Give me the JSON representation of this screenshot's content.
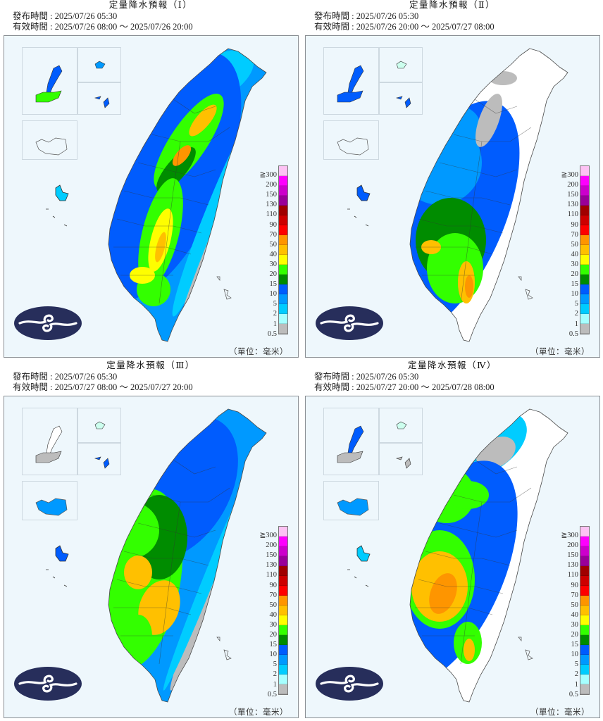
{
  "legend": {
    "levels": [
      "≧300",
      "200",
      "150",
      "130",
      "110",
      "90",
      "70",
      "50",
      "40",
      "30",
      "20",
      "15",
      "10",
      "5",
      "2",
      "1",
      "0.5"
    ],
    "colors": [
      "#fdc2f4",
      "#fe00fe",
      "#cc00cc",
      "#990099",
      "#a00000",
      "#cd0000",
      "#fe0000",
      "#fe9500",
      "#ffc000",
      "#fefe00",
      "#33ff00",
      "#008c00",
      "#005cfe",
      "#0099ff",
      "#00ccff",
      "#a6ffff",
      "#bcbcbc"
    ],
    "unit": "（單位：毫米）"
  },
  "panels": [
    {
      "title": "定量降水預報（Ⅰ）",
      "issue_label": "發布時間 : ",
      "issue_time": "2025/07/26 05:30",
      "valid_label": "有效時間 : ",
      "valid_time": "2025/07/26 08:00 ～ 2025/07/26 20:00",
      "intensity": "high-north-central"
    },
    {
      "title": "定量降水預報（Ⅱ）",
      "issue_label": "發布時間 : ",
      "issue_time": "2025/07/26 05:30",
      "valid_label": "有效時間 : ",
      "valid_time": "2025/07/26 20:00 ～ 2025/07/27 08:00",
      "intensity": "south-west"
    },
    {
      "title": "定量降水預報（Ⅲ）",
      "issue_label": "發布時間 : ",
      "issue_time": "2025/07/26 05:30",
      "valid_label": "有效時間 : ",
      "valid_time": "2025/07/27 08:00 ～ 2025/07/27 20:00",
      "intensity": "central-west"
    },
    {
      "title": "定量降水預報（Ⅳ）",
      "issue_label": "發布時間 : ",
      "issue_time": "2025/07/26 05:30",
      "valid_label": "有效時間 : ",
      "valid_time": "2025/07/27 20:00 ～ 2025/07/28 08:00",
      "intensity": "south-west-heavy"
    }
  ]
}
